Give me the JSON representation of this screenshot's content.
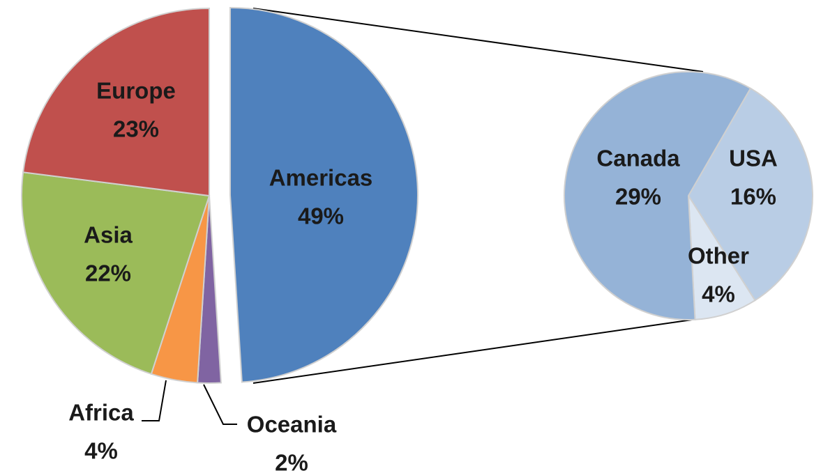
{
  "chart_data": [
    {
      "type": "pie",
      "categories": [
        "Americas",
        "Oceania",
        "Africa",
        "Asia",
        "Europe"
      ],
      "values": [
        49,
        2,
        4,
        22,
        23
      ],
      "value_labels": [
        "49%",
        "2%",
        "4%",
        "22%",
        "23%"
      ],
      "colors": [
        "#4f81bd",
        "#8064a2",
        "#f79646",
        "#9bbb59",
        "#c0504d"
      ]
    },
    {
      "type": "pie",
      "categories": [
        "USA",
        "Other",
        "Canada"
      ],
      "values": [
        16,
        4,
        29
      ],
      "value_labels": [
        "16%",
        "4%",
        "29%"
      ],
      "colors": [
        "#b9cde5",
        "#dce6f2",
        "#95b3d7"
      ]
    }
  ]
}
